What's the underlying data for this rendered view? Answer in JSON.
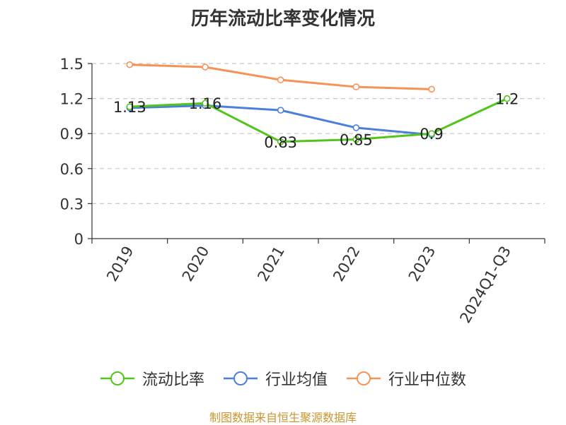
{
  "chart_data": {
    "type": "line",
    "title": "历年流动比率变化情况",
    "categories": [
      "2019",
      "2020",
      "2021",
      "2022",
      "2023",
      "2024Q1-Q3"
    ],
    "ylim": [
      0,
      1.5
    ],
    "yticks": [
      0,
      0.3,
      0.6,
      0.9,
      1.2,
      1.5
    ],
    "ytick_labels": [
      "0",
      "0.3",
      "0.6",
      "0.9",
      "1.2",
      "1.5"
    ],
    "grid": true,
    "legend_position": "bottom",
    "series": [
      {
        "name": "流动比率",
        "color": "#52c41a",
        "values": [
          1.13,
          1.16,
          0.83,
          0.85,
          0.9,
          1.2
        ],
        "labels": [
          "1.13",
          "1.16",
          "0.83",
          "0.85",
          "0.9",
          "1.2"
        ]
      },
      {
        "name": "行业均值",
        "color": "#4a7fe0",
        "values": [
          1.12,
          1.14,
          1.1,
          0.95,
          0.89,
          null
        ]
      },
      {
        "name": "行业中位数",
        "color": "#f79256",
        "values": [
          1.49,
          1.47,
          1.36,
          1.3,
          1.28,
          null
        ]
      }
    ]
  },
  "source": "制图数据来自恒生聚源数据库"
}
